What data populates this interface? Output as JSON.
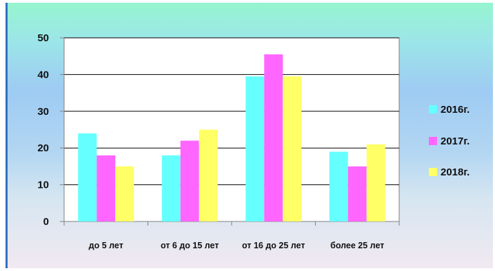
{
  "chart_data": {
    "type": "bar",
    "categories": [
      "до 5 лет",
      "от 6 до 15 лет",
      "от 16 до 25 лет",
      "более 25 лет"
    ],
    "series": [
      {
        "name": "2016г.",
        "values": [
          24,
          18,
          39.5,
          19
        ],
        "color": "#66ffff"
      },
      {
        "name": "2017г.",
        "values": [
          18,
          22,
          45.5,
          15
        ],
        "color": "#ff66ff"
      },
      {
        "name": "2018г.",
        "values": [
          15,
          25,
          39.5,
          21
        ],
        "color": "#ffff66"
      }
    ],
    "y_ticks": [
      "0",
      "10",
      "20",
      "30",
      "40",
      "50"
    ],
    "ylim": [
      0,
      50
    ],
    "grid": true,
    "legend_position": "right",
    "plot_background": "#ffffff",
    "axis_color": "#7f7f7f"
  }
}
